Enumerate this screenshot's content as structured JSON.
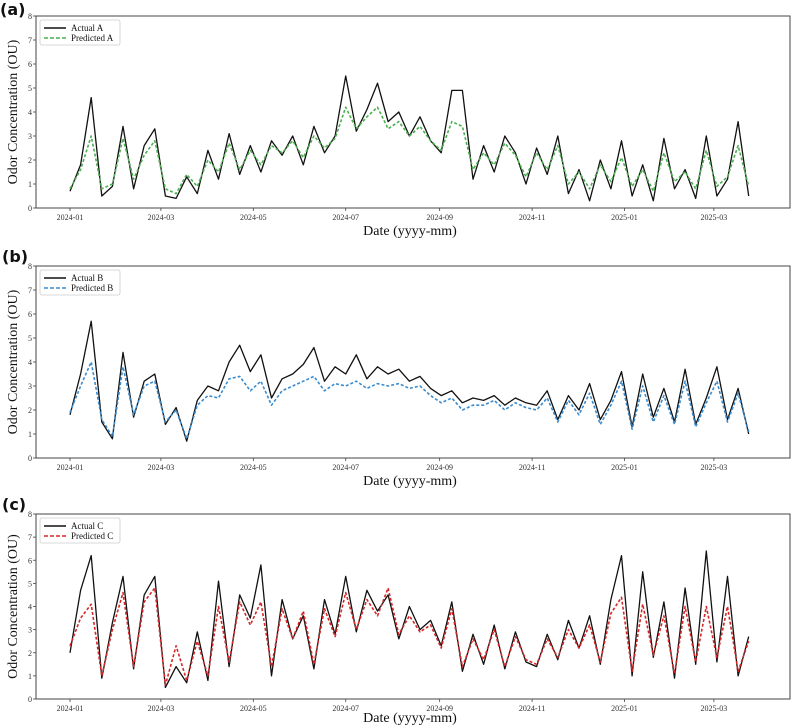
{
  "chart_data": [
    {
      "panel_label": "(a)",
      "type": "line",
      "title": "",
      "xlabel": "Date (yyyy-mm)",
      "ylabel": "Odor Concentration (OU)",
      "x_start": "2024-01-01",
      "x_step_days": 7,
      "xticks": [
        "2024-01",
        "2024-03",
        "2024-05",
        "2024-07",
        "2024-09",
        "2024-11",
        "2025-01",
        "2025-03"
      ],
      "yticks": [
        "0",
        "1",
        "2",
        "3",
        "4",
        "5",
        "6",
        "7",
        "8"
      ],
      "ylim": [
        0,
        8
      ],
      "legend_position": "top-left",
      "series": [
        {
          "name": "Actual A",
          "color": "#111111",
          "style": "solid",
          "values": [
            0.7,
            1.8,
            4.6,
            0.5,
            0.9,
            3.4,
            0.8,
            2.6,
            3.3,
            0.5,
            0.4,
            1.3,
            0.6,
            2.4,
            1.2,
            3.1,
            1.4,
            2.6,
            1.5,
            2.8,
            2.2,
            3.0,
            1.8,
            3.4,
            2.3,
            3.0,
            5.5,
            3.2,
            4.1,
            5.2,
            3.6,
            4.0,
            3.0,
            3.8,
            2.8,
            2.3,
            4.9,
            4.9,
            1.2,
            2.6,
            1.5,
            3.0,
            2.3,
            1.0,
            2.5,
            1.4,
            3.0,
            0.6,
            1.6,
            0.3,
            2.0,
            0.8,
            2.8,
            0.5,
            1.8,
            0.3,
            2.9,
            0.8,
            1.6,
            0.4,
            3.0,
            0.5,
            1.2,
            3.6,
            0.5
          ]
        },
        {
          "name": "Predicted A",
          "color": "#4caf50",
          "style": "dashed",
          "values": [
            0.8,
            1.6,
            3.0,
            0.8,
            1.0,
            2.9,
            1.2,
            2.2,
            2.8,
            0.8,
            0.6,
            1.4,
            0.9,
            2.0,
            1.5,
            2.7,
            1.6,
            2.4,
            1.8,
            2.6,
            2.3,
            2.8,
            2.1,
            3.0,
            2.5,
            2.9,
            4.2,
            3.3,
            3.8,
            4.2,
            3.3,
            3.6,
            3.0,
            3.4,
            2.8,
            2.4,
            3.6,
            3.4,
            1.6,
            2.3,
            1.8,
            2.7,
            2.2,
            1.3,
            2.3,
            1.6,
            2.6,
            1.0,
            1.5,
            0.8,
            1.8,
            1.1,
            2.1,
            0.9,
            1.6,
            0.7,
            2.3,
            1.1,
            1.5,
            0.8,
            2.4,
            0.9,
            1.3,
            2.6,
            0.9
          ]
        }
      ]
    },
    {
      "panel_label": "(b)",
      "type": "line",
      "title": "",
      "xlabel": "Date (yyyy-mm)",
      "ylabel": "Odor Concentration (OU)",
      "x_start": "2024-01-01",
      "x_step_days": 7,
      "xticks": [
        "2024-01",
        "2024-03",
        "2024-05",
        "2024-07",
        "2024-09",
        "2024-11",
        "2025-01",
        "2025-03"
      ],
      "yticks": [
        "0",
        "1",
        "2",
        "3",
        "4",
        "5",
        "6",
        "7",
        "8"
      ],
      "ylim": [
        0,
        8
      ],
      "legend_position": "top-left",
      "series": [
        {
          "name": "Actual B",
          "color": "#111111",
          "style": "solid",
          "values": [
            1.8,
            3.5,
            5.7,
            1.5,
            0.8,
            4.4,
            1.7,
            3.2,
            3.5,
            1.4,
            2.1,
            0.7,
            2.4,
            3.0,
            2.8,
            4.0,
            4.7,
            3.6,
            4.3,
            2.5,
            3.3,
            3.5,
            3.9,
            4.6,
            3.2,
            3.8,
            3.5,
            4.3,
            3.3,
            3.8,
            3.5,
            3.7,
            3.2,
            3.4,
            2.9,
            2.6,
            2.8,
            2.3,
            2.5,
            2.4,
            2.6,
            2.2,
            2.5,
            2.3,
            2.2,
            2.8,
            1.6,
            2.6,
            2.0,
            3.1,
            1.6,
            2.4,
            3.6,
            1.3,
            3.5,
            1.7,
            2.9,
            1.5,
            3.7,
            1.4,
            2.5,
            3.8,
            1.6,
            2.9,
            1.0
          ]
        },
        {
          "name": "Predicted B",
          "color": "#3a8ccf",
          "style": "dashed",
          "values": [
            1.9,
            3.0,
            4.0,
            1.6,
            0.9,
            3.8,
            1.8,
            3.0,
            3.2,
            1.5,
            2.0,
            0.8,
            2.2,
            2.6,
            2.5,
            3.3,
            3.4,
            2.8,
            3.2,
            2.2,
            2.8,
            3.0,
            3.2,
            3.4,
            2.8,
            3.1,
            3.0,
            3.2,
            2.9,
            3.1,
            3.0,
            3.1,
            2.9,
            3.0,
            2.6,
            2.3,
            2.5,
            2.0,
            2.2,
            2.2,
            2.4,
            2.0,
            2.3,
            2.1,
            2.0,
            2.5,
            1.5,
            2.4,
            1.8,
            2.7,
            1.4,
            2.2,
            3.2,
            1.2,
            3.0,
            1.5,
            2.6,
            1.4,
            3.2,
            1.3,
            2.3,
            3.2,
            1.5,
            2.7,
            1.1
          ]
        }
      ]
    },
    {
      "panel_label": "(c)",
      "type": "line",
      "title": "",
      "xlabel": "Date (yyyy-mm)",
      "ylabel": "Odor Concentration (OU)",
      "x_start": "2024-01-01",
      "x_step_days": 7,
      "xticks": [
        "2024-01",
        "2024-03",
        "2024-05",
        "2024-07",
        "2024-09",
        "2024-11",
        "2025-01",
        "2025-03"
      ],
      "yticks": [
        "0",
        "1",
        "2",
        "3",
        "4",
        "5",
        "6",
        "7",
        "8"
      ],
      "ylim": [
        0,
        8
      ],
      "legend_position": "top-left",
      "series": [
        {
          "name": "Actual C",
          "color": "#111111",
          "style": "solid",
          "values": [
            2.0,
            4.7,
            6.2,
            0.9,
            3.3,
            5.3,
            1.3,
            4.5,
            5.3,
            0.5,
            1.4,
            0.7,
            2.9,
            0.8,
            5.1,
            1.4,
            4.5,
            3.5,
            5.8,
            1.0,
            4.3,
            2.6,
            3.6,
            1.3,
            4.3,
            2.8,
            5.3,
            2.9,
            4.7,
            3.8,
            4.5,
            2.6,
            4.0,
            3.0,
            3.4,
            2.3,
            4.2,
            1.2,
            2.8,
            1.5,
            3.2,
            1.3,
            2.9,
            1.6,
            1.4,
            2.8,
            1.7,
            3.4,
            2.2,
            3.6,
            1.5,
            4.3,
            6.2,
            1.0,
            5.5,
            1.8,
            4.2,
            0.9,
            4.8,
            1.5,
            6.4,
            1.6,
            5.3,
            1.0,
            2.7
          ]
        },
        {
          "name": "Predicted C",
          "color": "#d62728",
          "style": "dashed",
          "values": [
            2.3,
            3.5,
            4.1,
            1.0,
            3.0,
            4.6,
            1.4,
            4.2,
            4.8,
            0.6,
            2.3,
            0.8,
            2.5,
            1.0,
            4.0,
            1.6,
            4.2,
            3.2,
            4.2,
            1.4,
            3.9,
            2.6,
            3.8,
            1.5,
            3.9,
            2.7,
            4.6,
            3.0,
            4.3,
            3.6,
            4.8,
            2.8,
            3.6,
            2.9,
            3.2,
            2.2,
            3.9,
            1.4,
            2.6,
            1.7,
            3.0,
            1.4,
            2.7,
            1.7,
            1.5,
            2.6,
            1.8,
            3.0,
            2.2,
            3.2,
            1.6,
            3.7,
            4.4,
            1.2,
            4.1,
            1.9,
            3.6,
            1.1,
            4.0,
            1.6,
            4.0,
            1.8,
            4.0,
            1.2,
            2.5
          ]
        }
      ]
    }
  ]
}
